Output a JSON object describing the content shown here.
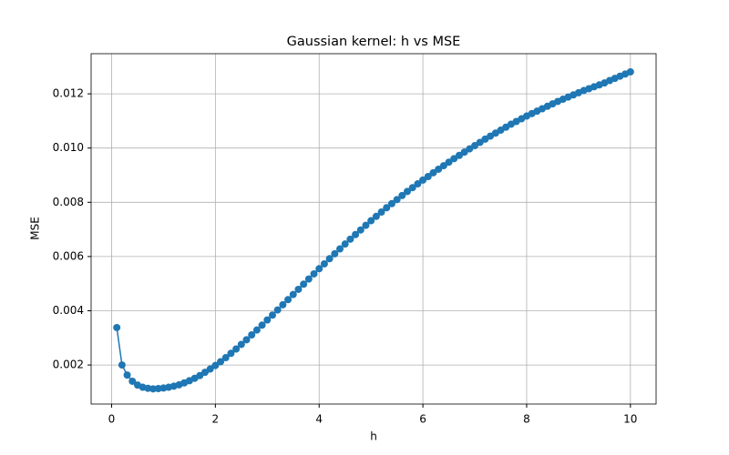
{
  "chart_data": {
    "type": "line",
    "title": "Gaussian kernel: h vs MSE",
    "xlabel": "h",
    "ylabel": "MSE",
    "color": "#1f77b4",
    "grid": true,
    "x": [
      0.1,
      0.2,
      0.3,
      0.4,
      0.5,
      0.6,
      0.7,
      0.8,
      0.9,
      1.0,
      1.1,
      1.2,
      1.3,
      1.4,
      1.5,
      1.6,
      1.7,
      1.8,
      1.9,
      2.0,
      2.1,
      2.2,
      2.3,
      2.4,
      2.5,
      2.6,
      2.7,
      2.8,
      2.9,
      3.0,
      3.1,
      3.2,
      3.3,
      3.4,
      3.5,
      3.6,
      3.7,
      3.8,
      3.9,
      4.0,
      4.1,
      4.2,
      4.3,
      4.4,
      4.5,
      4.6,
      4.7,
      4.8,
      4.9,
      5.0,
      5.1,
      5.2,
      5.3,
      5.4,
      5.5,
      5.6,
      5.7,
      5.8,
      5.9,
      6.0,
      6.1,
      6.2,
      6.3,
      6.4,
      6.5,
      6.6,
      6.7,
      6.8,
      6.9,
      7.0,
      7.1,
      7.2,
      7.3,
      7.4,
      7.5,
      7.6,
      7.7,
      7.8,
      7.9,
      8.0,
      8.1,
      8.2,
      8.3,
      8.4,
      8.5,
      8.6,
      8.7,
      8.8,
      8.9,
      9.0,
      9.1,
      9.2,
      9.3,
      9.4,
      9.5,
      9.6,
      9.7,
      9.8,
      9.9,
      10.0
    ],
    "values": [
      0.00338,
      0.002,
      0.00163,
      0.0014,
      0.00126,
      0.00118,
      0.00114,
      0.00112,
      0.00113,
      0.00115,
      0.00118,
      0.00122,
      0.00127,
      0.00134,
      0.00142,
      0.00151,
      0.00161,
      0.00173,
      0.00185,
      0.00198,
      0.00212,
      0.00227,
      0.00243,
      0.00259,
      0.00276,
      0.00293,
      0.00311,
      0.00329,
      0.00347,
      0.00366,
      0.00384,
      0.00403,
      0.00422,
      0.00441,
      0.0046,
      0.00479,
      0.00498,
      0.00517,
      0.00536,
      0.00555,
      0.00573,
      0.00592,
      0.0061,
      0.00628,
      0.00646,
      0.00664,
      0.00681,
      0.00698,
      0.00715,
      0.00732,
      0.00748,
      0.00764,
      0.0078,
      0.00795,
      0.0081,
      0.00825,
      0.0084,
      0.00854,
      0.00868,
      0.00882,
      0.00895,
      0.00909,
      0.00922,
      0.00935,
      0.00948,
      0.00961,
      0.00973,
      0.00985,
      0.00997,
      0.01009,
      0.01021,
      0.01033,
      0.01044,
      0.01055,
      0.01066,
      0.01077,
      0.01088,
      0.01098,
      0.01108,
      0.01118,
      0.01127,
      0.01136,
      0.01145,
      0.01154,
      0.01163,
      0.01172,
      0.0118,
      0.01188,
      0.01196,
      0.01204,
      0.01212,
      0.01219,
      0.01226,
      0.01233,
      0.0124,
      0.01249,
      0.01257,
      0.01265,
      0.01273,
      0.01281
    ],
    "xlim": [
      -0.395,
      10.495
    ],
    "xticks": [
      0,
      2,
      4,
      6,
      8,
      10
    ],
    "ylim": [
      0.00056,
      0.01348
    ],
    "yticks": [
      0.002,
      0.004,
      0.006,
      0.008,
      {
        "value": 0.01,
        "label": "0.010"
      },
      0.012
    ]
  }
}
